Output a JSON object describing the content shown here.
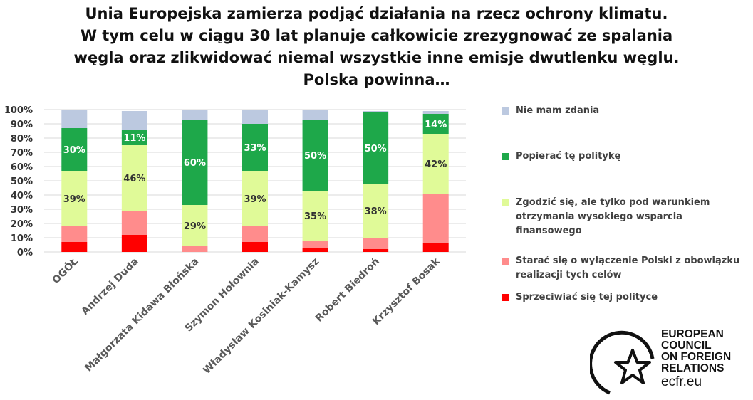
{
  "title": {
    "lines": [
      "Unia Europejska zamierza podjąć działania na rzecz ochrony klimatu.",
      "W tym celu w ciągu 30 lat planuje całkowicie zrezygnować ze spalania",
      "węgla oraz zlikwidować niemal wszystkie inne emisje dwutlenku węglu.",
      "Polska powinna…"
    ]
  },
  "chart_data": {
    "type": "bar",
    "stacked": true,
    "categories": [
      "OGÓŁ",
      "Andrzej Duda",
      "Małgorzata Kidawa Błońska",
      "Szymon Hołownia",
      "Władysław Kosiniak-Kamysz",
      "Robert Biedroń",
      "Krzysztof Bosak"
    ],
    "ylim": [
      0,
      100
    ],
    "yticks": [
      "0%",
      "10%",
      "20%",
      "30%",
      "40%",
      "50%",
      "60%",
      "70%",
      "80%",
      "90%",
      "100%"
    ],
    "grid": true,
    "legend_position": "right",
    "series": [
      {
        "name": "Sprzeciwiać się tej polityce",
        "color": "#ff0000",
        "values": [
          7,
          12,
          0,
          7,
          3,
          2,
          6
        ]
      },
      {
        "name": "Starać się o wyłączenie Polski z obowiązku realizacji tych celów",
        "color": "#ff8c8c",
        "values": [
          11,
          17,
          4,
          11,
          5,
          8,
          35
        ],
        "data_labels": [
          "",
          "",
          "",
          "",
          "",
          "",
          ""
        ]
      },
      {
        "name": "Zgodzić się, ale tylko pod warunkiem otrzymania wysokiego wsparcia finansowego",
        "color": "#e0fa98",
        "values": [
          39,
          46,
          29,
          39,
          35,
          38,
          42
        ],
        "data_labels": [
          "39%",
          "46%",
          "29%",
          "39%",
          "35%",
          "38%",
          "42%"
        ],
        "label_color": "#333333"
      },
      {
        "name": "Popierać tę politykę",
        "color": "#1ea84a",
        "values": [
          30,
          11,
          60,
          33,
          50,
          50,
          14
        ],
        "data_labels": [
          "30%",
          "11%",
          "60%",
          "33%",
          "50%",
          "50%",
          "14%"
        ],
        "label_color": "#ffffff"
      },
      {
        "name": "Nie mam zdania",
        "color": "#bcc9e0",
        "values": [
          13,
          13,
          7,
          10,
          7,
          1,
          2
        ]
      }
    ]
  },
  "legend": [
    {
      "lines": [
        "Nie mam zdania"
      ],
      "color": "#bcc9e0"
    },
    {
      "lines": [
        "Popierać tę politykę"
      ],
      "color": "#1ea84a"
    },
    {
      "lines": [
        "Zgodzić się, ale tylko pod warunkiem",
        "otrzymania wysokiego wsparcia",
        "finansowego"
      ],
      "color": "#e0fa98"
    },
    {
      "lines": [
        "Starać się o wyłączenie Polski z obowiązku",
        "realizacji tych celów"
      ],
      "color": "#ff8c8c"
    },
    {
      "lines": [
        "Sprzeciwiać się tej polityce"
      ],
      "color": "#ff0000"
    }
  ],
  "logo": {
    "lines": [
      "EUROPEAN",
      "COUNCIL",
      "ON FOREIGN",
      "RELATIONS"
    ],
    "url": "ecfr.eu"
  }
}
